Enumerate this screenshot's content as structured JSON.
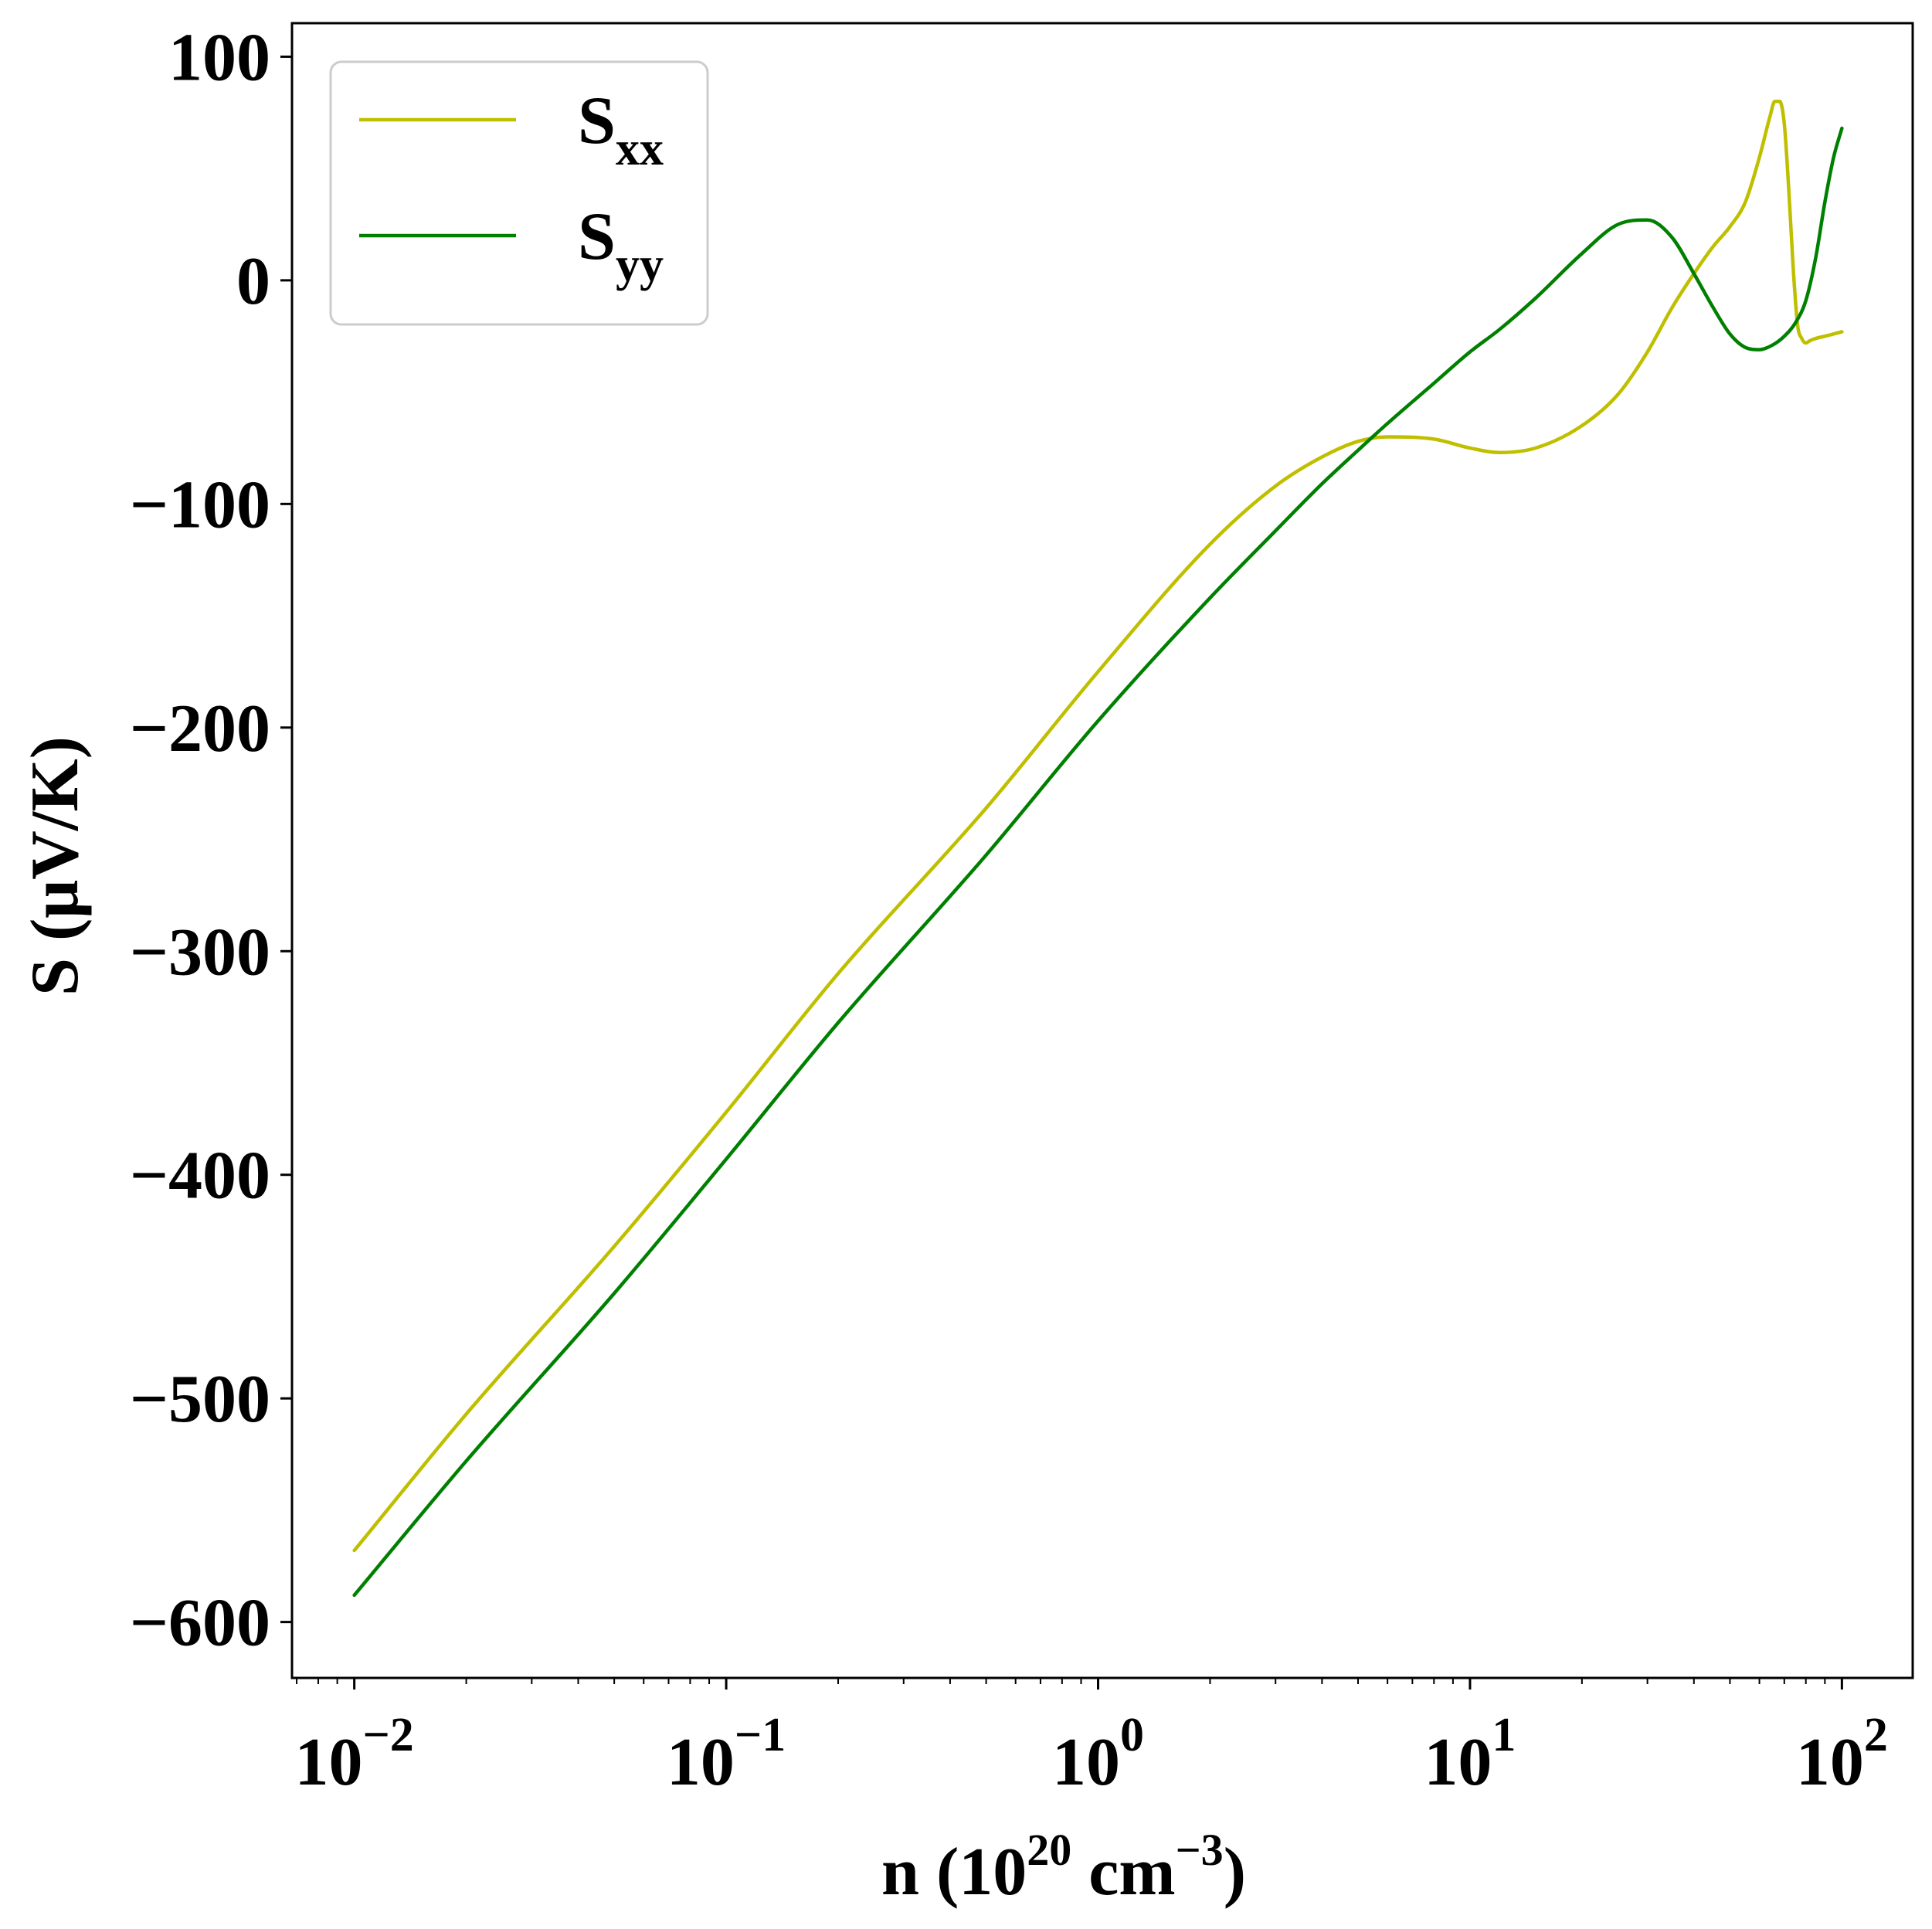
{
  "chart_data": {
    "type": "line",
    "title": "",
    "xlabel": {
      "prefix": "n (10",
      "sup1": "20",
      "middle": " cm",
      "sup2": "−3",
      "suffix": ")"
    },
    "ylabel": "S (μV/K)",
    "x_scale": "log",
    "xlim": [
      0.0068,
      155
    ],
    "ylim": [
      -625,
      115
    ],
    "x_ticks": [
      {
        "value": 0.01,
        "base": "10",
        "exp": "−2"
      },
      {
        "value": 0.1,
        "base": "10",
        "exp": "−1"
      },
      {
        "value": 1,
        "base": "10",
        "exp": "0"
      },
      {
        "value": 10,
        "base": "10",
        "exp": "1"
      },
      {
        "value": 100,
        "base": "10",
        "exp": "2"
      }
    ],
    "y_ticks": [
      {
        "value": 100,
        "label": "100"
      },
      {
        "value": 0,
        "label": "0"
      },
      {
        "value": -100,
        "label": "−100"
      },
      {
        "value": -200,
        "label": "−200"
      },
      {
        "value": -300,
        "label": "−300"
      },
      {
        "value": -400,
        "label": "−400"
      },
      {
        "value": -500,
        "label": "−500"
      },
      {
        "value": -600,
        "label": "−600"
      }
    ],
    "grid": false,
    "legend_position": "top-left",
    "series": [
      {
        "name": "S",
        "subscript": "xx",
        "color": "#bfbf00",
        "x": [
          0.01,
          0.02,
          0.05,
          0.1,
          0.2,
          0.5,
          1,
          2,
          3,
          4,
          5,
          6,
          8,
          10,
          12,
          15,
          20,
          25,
          30,
          35,
          40,
          45,
          50,
          55,
          60,
          64,
          66,
          68,
          70,
          72,
          74,
          76,
          78,
          80,
          82,
          85,
          90,
          95,
          100
        ],
        "values": [
          -568,
          -507,
          -432,
          -372,
          -310,
          -236,
          -175,
          -118,
          -92,
          -79,
          -72,
          -70,
          -71,
          -75,
          -77,
          -75,
          -65,
          -51,
          -32,
          -12,
          3,
          15,
          24,
          35,
          55,
          73,
          80,
          80,
          70,
          40,
          5,
          -20,
          -26,
          -28,
          -27,
          -26,
          -25,
          -24,
          -23
        ]
      },
      {
        "name": "S",
        "subscript": "yy",
        "color": "#008000",
        "x": [
          0.01,
          0.02,
          0.05,
          0.1,
          0.2,
          0.5,
          1,
          2,
          3,
          4,
          5,
          6,
          8,
          10,
          12,
          15,
          20,
          25,
          30,
          35,
          40,
          45,
          50,
          55,
          60,
          65,
          70,
          75,
          80,
          85,
          90,
          95,
          100
        ],
        "values": [
          -588,
          -528,
          -453,
          -393,
          -332,
          -257,
          -197,
          -142,
          -112,
          -91,
          -76,
          -64,
          -46,
          -32,
          -22,
          -8,
          12,
          25,
          27,
          19,
          3,
          -12,
          -24,
          -30,
          -31,
          -29,
          -25,
          -19,
          -9,
          10,
          35,
          55,
          68
        ]
      }
    ]
  }
}
